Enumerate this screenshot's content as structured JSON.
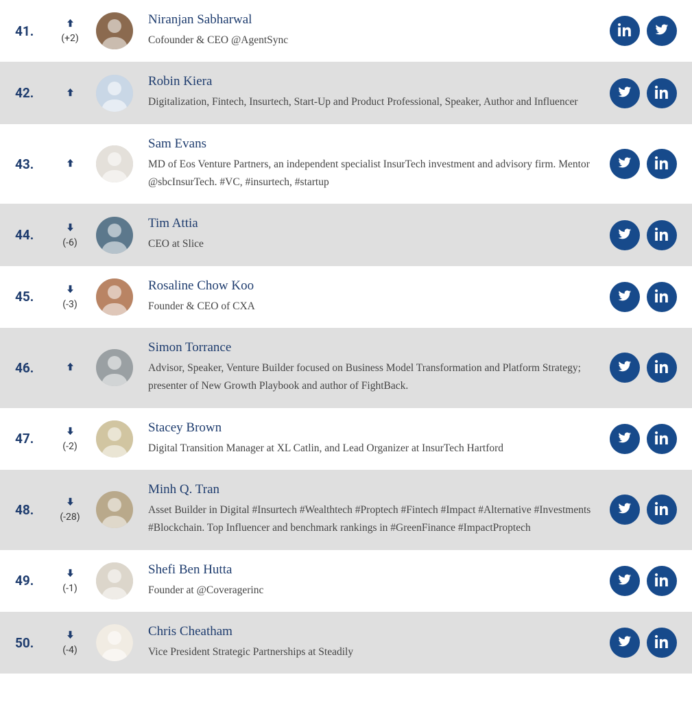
{
  "colors": {
    "row_bg": "#ffffff",
    "row_alt_bg": "#dfdfdf",
    "accent": "#1e3c6e",
    "social_btn_bg": "#174a8b",
    "social_btn_fg": "#ffffff",
    "text": "#444444"
  },
  "rows": [
    {
      "rank": "41.",
      "trend_dir": "up",
      "trend_delta": "(+2)",
      "name": "Niranjan Sabharwal",
      "bio": "Cofounder & CEO @AgentSync",
      "social": [
        "linkedin",
        "twitter"
      ],
      "avatar_bg": "#8b6a4f"
    },
    {
      "rank": "42.",
      "trend_dir": "up",
      "trend_delta": "",
      "name": "Robin Kiera",
      "bio": "Digitalization, Fintech, Insurtech, Start-Up and Product Professional, Speaker, Author and Influencer",
      "social": [
        "twitter",
        "linkedin"
      ],
      "avatar_bg": "#c9d7e6"
    },
    {
      "rank": "43.",
      "trend_dir": "up",
      "trend_delta": "",
      "name": "Sam Evans",
      "bio": "MD of Eos Venture Partners, an independent specialist InsurTech investment and advisory firm. Mentor @sbcInsurTech. #VC, #insurtech, #startup",
      "social": [
        "twitter",
        "linkedin"
      ],
      "avatar_bg": "#e4e0da"
    },
    {
      "rank": "44.",
      "trend_dir": "down",
      "trend_delta": "(-6)",
      "name": "Tim Attia",
      "bio": "CEO at Slice",
      "social": [
        "twitter",
        "linkedin"
      ],
      "avatar_bg": "#5c788c"
    },
    {
      "rank": "45.",
      "trend_dir": "down",
      "trend_delta": "(-3)",
      "name": "Rosaline Chow Koo",
      "bio": "Founder & CEO of CXA",
      "social": [
        "twitter",
        "linkedin"
      ],
      "avatar_bg": "#b98464"
    },
    {
      "rank": "46.",
      "trend_dir": "up",
      "trend_delta": "",
      "name": "Simon Torrance",
      "bio": "Advisor, Speaker, Venture Builder focused on Business Model Transformation and Platform Strategy; presenter of New Growth Playbook and author of FightBack.",
      "social": [
        "twitter",
        "linkedin"
      ],
      "avatar_bg": "#9aa0a3"
    },
    {
      "rank": "47.",
      "trend_dir": "down",
      "trend_delta": "(-2)",
      "name": "Stacey Brown",
      "bio": "Digital Transition Manager at XL Catlin, and Lead Organizer at InsurTech Hartford",
      "social": [
        "twitter",
        "linkedin"
      ],
      "avatar_bg": "#d1c5a1"
    },
    {
      "rank": "48.",
      "trend_dir": "down",
      "trend_delta": "(-28)",
      "name": "Minh Q. Tran",
      "bio": "Asset Builder in Digital #Insurtech #Wealthtech #Proptech #Fintech #Impact #Alternative #Investments #Blockchain. Top Influencer and benchmark rankings in #GreenFinance #ImpactProptech",
      "social": [
        "twitter",
        "linkedin"
      ],
      "avatar_bg": "#b9a98b"
    },
    {
      "rank": "49.",
      "trend_dir": "down",
      "trend_delta": "(-1)",
      "name": "Shefi Ben Hutta",
      "bio": "Founder at @Coveragerinc",
      "social": [
        "twitter",
        "linkedin"
      ],
      "avatar_bg": "#dcd6cb"
    },
    {
      "rank": "50.",
      "trend_dir": "down",
      "trend_delta": "(-4)",
      "name": "Chris Cheatham",
      "bio": "Vice President Strategic Partnerships at Steadily",
      "social": [
        "twitter",
        "linkedin"
      ],
      "avatar_bg": "#f1ece3"
    }
  ]
}
